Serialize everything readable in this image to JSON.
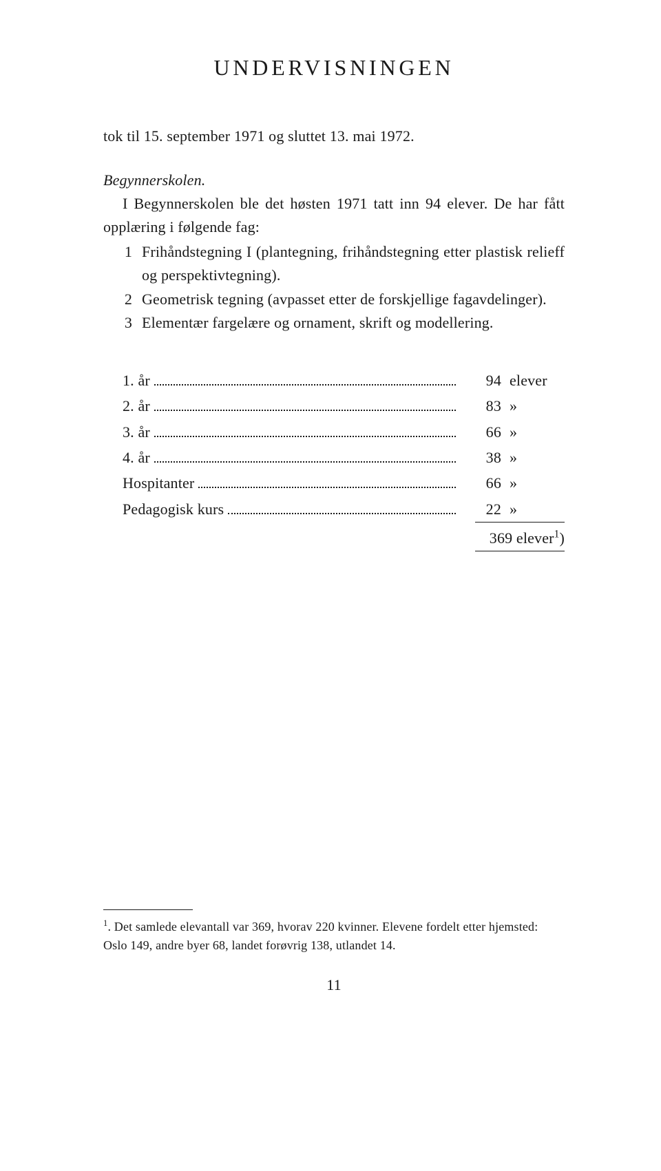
{
  "title": "UNDERVISNINGEN",
  "lead": "tok til 15. september 1971 og sluttet 13. mai 1972.",
  "section_heading": "Begynnerskolen.",
  "intro": "I Begynnerskolen ble det høsten 1971 tatt inn 94 elever. De har fått opplæring i følgende fag:",
  "items": [
    {
      "n": "1",
      "text": "Frihåndstegning I (plantegning, frihåndstegning etter plastisk relieff og perspektivtegning)."
    },
    {
      "n": "2",
      "text": "Geometrisk tegning (avpasset etter de forskjellige fagavdelinger)."
    },
    {
      "n": "3",
      "text": "Elementær fargelære og ornament, skrift og modellering."
    }
  ],
  "table": [
    {
      "label": "1. år",
      "value": "94",
      "unit": "elever"
    },
    {
      "label": "2. år",
      "value": "83",
      "unit": "»"
    },
    {
      "label": "3. år",
      "value": "66",
      "unit": "»"
    },
    {
      "label": "4. år",
      "value": "38",
      "unit": "»"
    },
    {
      "label": "Hospitanter",
      "value": "66",
      "unit": "»"
    },
    {
      "label": "Pedagogisk kurs",
      "value": "22",
      "unit": "»"
    }
  ],
  "total": "369 elever",
  "total_sup": "1",
  "total_paren": ")",
  "footnote_sup": "1",
  "footnote": ". Det samlede elevantall var 369, hvorav 220 kvinner.\nElevene fordelt etter hjemsted: Oslo 149, andre byer 68, landet forøvrig 138, utlandet 14.",
  "page_number": "11"
}
